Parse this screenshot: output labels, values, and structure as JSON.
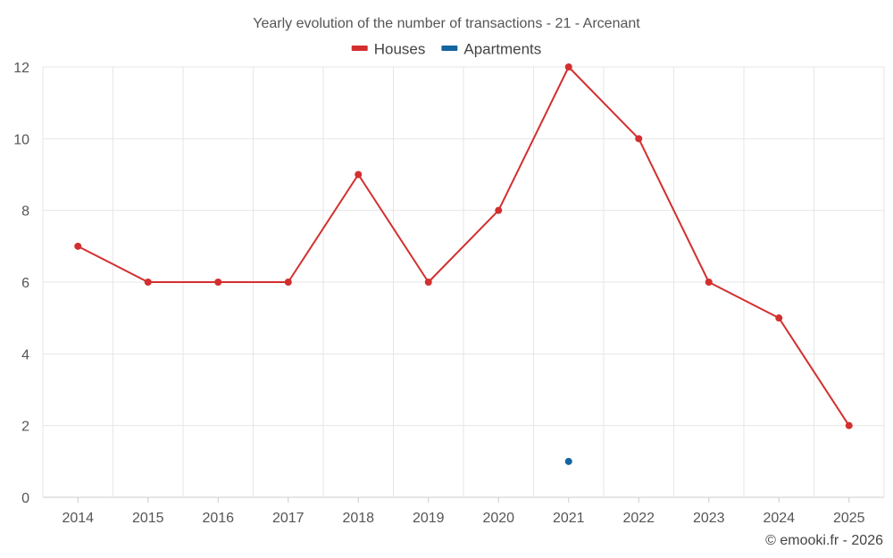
{
  "chart_data": {
    "type": "line",
    "title": "Yearly evolution of the number of transactions - 21 - Arcenant",
    "categories": [
      "2014",
      "2015",
      "2016",
      "2017",
      "2018",
      "2019",
      "2020",
      "2021",
      "2022",
      "2023",
      "2024",
      "2025"
    ],
    "series": [
      {
        "name": "Houses",
        "color": "#d32f2f",
        "values": [
          7,
          6,
          6,
          6,
          9,
          6,
          8,
          12,
          10,
          6,
          5,
          2
        ]
      },
      {
        "name": "Apartments",
        "color": "#1565a0",
        "values": [
          null,
          null,
          null,
          null,
          null,
          null,
          null,
          1,
          null,
          null,
          null,
          null
        ]
      }
    ],
    "ylim": [
      0,
      12
    ],
    "yticks": [
      0,
      2,
      4,
      6,
      8,
      10,
      12
    ],
    "xlabel": "",
    "ylabel": "",
    "grid": true,
    "legend": "top-center"
  },
  "credit": "© emooki.fr - 2026"
}
